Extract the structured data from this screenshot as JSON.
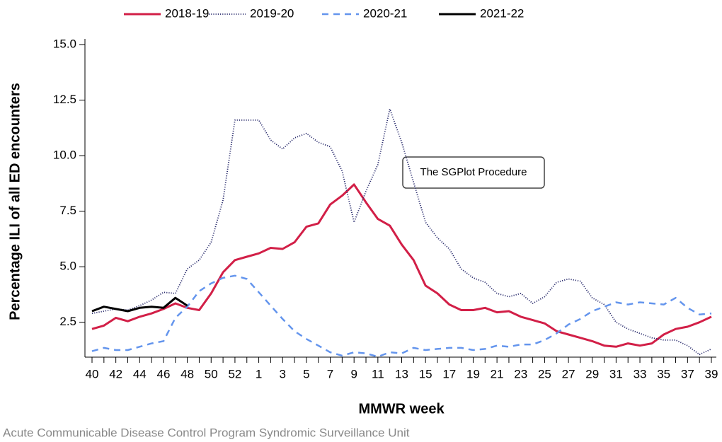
{
  "chart_data": {
    "type": "line",
    "x_label": "MMWR week",
    "y_label": "Percentage ILI of all ED encounters",
    "annotation": "The SGPlot Procedure",
    "footnote": "Acute Communicable Disease Control Program Syndromic Surveillance Unit",
    "categories": [
      "40",
      null,
      "42",
      null,
      "44",
      null,
      "46",
      null,
      "48",
      null,
      "50",
      null,
      "52",
      null,
      "1",
      null,
      "3",
      null,
      "5",
      null,
      "7",
      null,
      "9",
      null,
      "11",
      null,
      "13",
      null,
      "15",
      null,
      "17",
      null,
      "19",
      null,
      "21",
      null,
      "23",
      null,
      "25",
      null,
      "27",
      null,
      "29",
      null,
      "31",
      null,
      "33",
      null,
      "35",
      null,
      "37",
      null,
      "39"
    ],
    "ylim": [
      0.9,
      15
    ],
    "yticks": [
      2.5,
      {
        "value": 5,
        "label": "5.0"
      },
      7.5,
      {
        "value": 10,
        "label": "10.0"
      },
      12.5,
      {
        "value": 15,
        "label": "15.0"
      }
    ],
    "series": [
      {
        "name": "2018-19",
        "color": "#d21f47",
        "style": "solid",
        "values": [
          2.2,
          2.35,
          2.7,
          2.55,
          2.75,
          2.9,
          3.1,
          3.35,
          3.15,
          3.05,
          3.8,
          4.75,
          5.3,
          5.45,
          5.6,
          5.85,
          5.8,
          6.1,
          6.8,
          6.95,
          7.8,
          8.2,
          8.7,
          7.9,
          7.15,
          6.85,
          6.0,
          5.3,
          4.15,
          3.8,
          3.3,
          3.05,
          3.05,
          3.15,
          2.95,
          3.0,
          2.75,
          2.6,
          2.45,
          2.1,
          1.95,
          1.8,
          1.65,
          1.45,
          1.4,
          1.55,
          1.45,
          1.55,
          1.95,
          2.2,
          2.3,
          2.5,
          2.75
        ]
      },
      {
        "name": "2019-20",
        "color": "#2b2d6e",
        "style": "dotted",
        "values": [
          2.9,
          3.0,
          3.1,
          3.05,
          3.25,
          3.5,
          3.85,
          3.8,
          4.9,
          5.3,
          6.1,
          8.0,
          11.6,
          11.6,
          11.6,
          10.7,
          10.3,
          10.8,
          11.0,
          10.6,
          10.4,
          9.3,
          7.0,
          8.4,
          9.6,
          12.1,
          10.6,
          8.8,
          7.0,
          6.3,
          5.8,
          4.9,
          4.5,
          4.3,
          3.8,
          3.65,
          3.8,
          3.35,
          3.65,
          4.3,
          4.45,
          4.35,
          3.6,
          3.3,
          2.5,
          2.2,
          2.0,
          1.8,
          1.7,
          1.7,
          1.45,
          1.05,
          1.3
        ]
      },
      {
        "name": "2020-21",
        "color": "#6495ed",
        "style": "dashed",
        "values": [
          1.2,
          1.35,
          1.25,
          1.25,
          1.4,
          1.55,
          1.65,
          2.7,
          3.2,
          3.9,
          4.25,
          4.5,
          4.6,
          4.45,
          3.85,
          3.25,
          2.65,
          2.1,
          1.75,
          1.45,
          1.15,
          1.0,
          1.15,
          1.1,
          0.95,
          1.15,
          1.1,
          1.35,
          1.25,
          1.3,
          1.35,
          1.35,
          1.25,
          1.3,
          1.45,
          1.4,
          1.5,
          1.5,
          1.7,
          2.0,
          2.4,
          2.65,
          3.0,
          3.2,
          3.4,
          3.3,
          3.4,
          3.35,
          3.3,
          3.6,
          3.15,
          2.85,
          2.9
        ]
      },
      {
        "name": "2021-22",
        "color": "#000000",
        "style": "solid",
        "values": [
          3.0,
          3.2,
          3.1,
          3.0,
          3.15,
          3.2,
          3.15,
          3.6,
          3.25,
          null,
          null,
          null,
          null,
          null,
          null,
          null,
          null,
          null,
          null,
          null,
          null,
          null,
          null,
          null,
          null,
          null,
          null,
          null,
          null,
          null,
          null,
          null,
          null,
          null,
          null,
          null,
          null,
          null,
          null,
          null,
          null,
          null,
          null,
          null,
          null,
          null,
          null,
          null,
          null,
          null,
          null,
          null,
          null
        ]
      }
    ]
  }
}
